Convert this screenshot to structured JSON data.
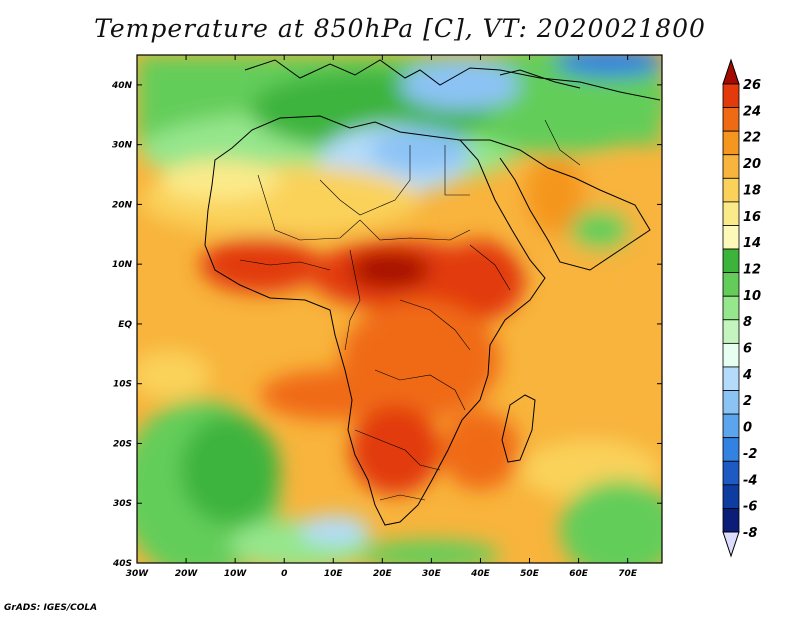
{
  "title": "Temperature at 850hPa [C], VT: 2020021800",
  "credit": "GrADS: IGES/COLA",
  "map": {
    "lon_range": [
      -30,
      77
    ],
    "lat_range": [
      -40,
      45
    ],
    "lat_ticks": [
      {
        "value": 40,
        "label": "40N"
      },
      {
        "value": 30,
        "label": "30N"
      },
      {
        "value": 20,
        "label": "20N"
      },
      {
        "value": 10,
        "label": "10N"
      },
      {
        "value": 0,
        "label": "EQ"
      },
      {
        "value": -10,
        "label": "10S"
      },
      {
        "value": -20,
        "label": "20S"
      },
      {
        "value": -30,
        "label": "30S"
      },
      {
        "value": -40,
        "label": "40S"
      }
    ],
    "lon_ticks": [
      {
        "value": -30,
        "label": "30W"
      },
      {
        "value": -20,
        "label": "20W"
      },
      {
        "value": -10,
        "label": "10W"
      },
      {
        "value": 0,
        "label": "0"
      },
      {
        "value": 10,
        "label": "10E"
      },
      {
        "value": 20,
        "label": "20E"
      },
      {
        "value": 30,
        "label": "30E"
      },
      {
        "value": 40,
        "label": "40E"
      },
      {
        "value": 50,
        "label": "50E"
      },
      {
        "value": 60,
        "label": "60E"
      },
      {
        "value": 70,
        "label": "70E"
      }
    ]
  },
  "colorbar": {
    "labels": [
      "26",
      "24",
      "22",
      "20",
      "18",
      "16",
      "14",
      "12",
      "10",
      "8",
      "6",
      "4",
      "2",
      "0",
      "-2",
      "-4",
      "-6",
      "-8"
    ],
    "colors": [
      "#a50a00",
      "#e23a0a",
      "#f06a14",
      "#f5961e",
      "#f8b43c",
      "#fad25a",
      "#fbea8a",
      "#fdf9b8",
      "#3cb43c",
      "#64cd5a",
      "#96e68c",
      "#c4f5be",
      "#e6fff0",
      "#b4dcfa",
      "#8cc3f5",
      "#5aa5ee",
      "#3282e1",
      "#1e5ac3",
      "#0f3ca0",
      "#0a1e78",
      "#dcdcff"
    ]
  }
}
